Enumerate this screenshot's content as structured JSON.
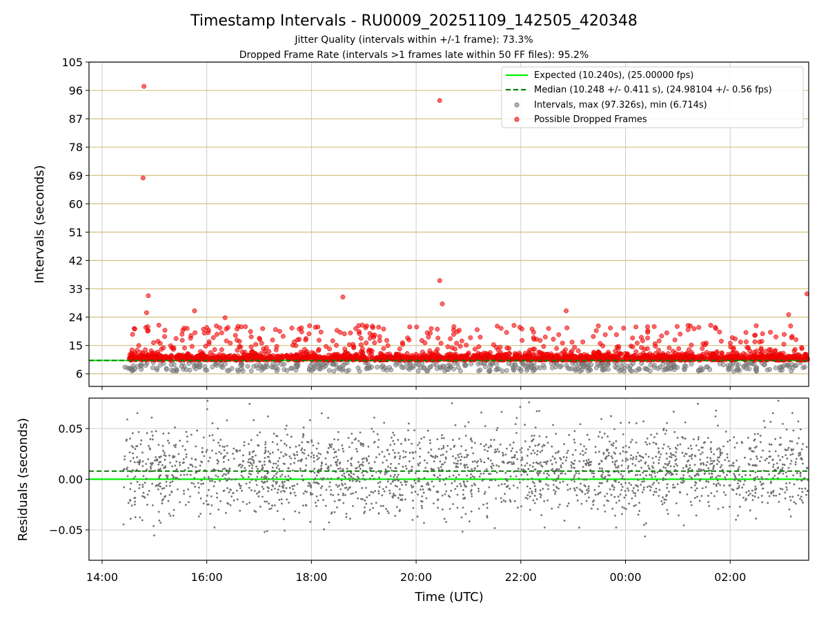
{
  "figure": {
    "title": "Timestamp Intervals - RU0009_20251109_142505_420348",
    "subtitle1": "Jitter Quality (intervals within +/-1 frame): 73.3%",
    "subtitle2": "Dropped Frame Rate (intervals >1 frames late within 50 FF files): 95.2%"
  },
  "chart_data": [
    {
      "type": "scatter",
      "title": "Timestamp Intervals - RU0009_20251109_142505_420348",
      "xlabel": "",
      "ylabel": "Intervals (seconds)",
      "x_range": [
        "2025-11-09T13:45",
        "2025-11-10T03:30"
      ],
      "ylim": [
        2,
        105
      ],
      "y_ticks": [
        6,
        15,
        24,
        33,
        42,
        51,
        60,
        69,
        78,
        87,
        96,
        105
      ],
      "x_ticks": [
        "14:00",
        "16:00",
        "18:00",
        "20:00",
        "22:00",
        "00:00",
        "02:00"
      ],
      "grid": true,
      "legend_position": "top-right",
      "expected_interval": 10.24,
      "median_interval": 10.248,
      "series": [
        {
          "name": "Expected (10.240s), (25.00000 fps)",
          "type": "line",
          "color": "#00ee00"
        },
        {
          "name": "Median (10.248 +/- 0.411 s), (24.98104 +/- 0.56 fps)",
          "type": "line",
          "color": "#008000"
        },
        {
          "name": "Intervals, max (97.326s), min (6.714s)",
          "type": "scatter",
          "color": "#808080"
        },
        {
          "name": "Possible Dropped Frames",
          "type": "scatter",
          "color": "#ff0000",
          "notable_points": [
            {
              "x": "2025-11-09T14:48",
              "y": 97.3
            },
            {
              "x": "2025-11-09T14:47",
              "y": 68.2
            },
            {
              "x": "2025-11-09T20:27",
              "y": 92.8
            },
            {
              "x": "2025-11-09T20:27",
              "y": 35.6
            },
            {
              "x": "2025-11-09T20:30",
              "y": 28.2
            },
            {
              "x": "2025-11-09T14:53",
              "y": 30.8
            },
            {
              "x": "2025-11-09T14:51",
              "y": 25.4
            },
            {
              "x": "2025-11-09T18:36",
              "y": 30.4
            },
            {
              "x": "2025-11-09T22:52",
              "y": 26.0
            },
            {
              "x": "2025-11-09T15:46",
              "y": 26.0
            },
            {
              "x": "2025-11-09T16:21",
              "y": 23.8
            },
            {
              "x": "2025-11-10T03:28",
              "y": 31.4
            },
            {
              "x": "2025-11-10T03:07",
              "y": 24.8
            }
          ]
        }
      ]
    },
    {
      "type": "scatter",
      "xlabel": "Time (UTC)",
      "ylabel": "Residuals (seconds)",
      "x_range": [
        "2025-11-09T13:45",
        "2025-11-10T03:30"
      ],
      "ylim": [
        -0.08,
        0.08
      ],
      "y_ticks": [
        -0.05,
        0.0,
        0.05
      ],
      "y_tick_labels": [
        "−0.05",
        "0.00",
        "0.05"
      ],
      "x_ticks": [
        "14:00",
        "16:00",
        "18:00",
        "20:00",
        "22:00",
        "00:00",
        "02:00"
      ],
      "grid": true,
      "expected_residual": 0.0,
      "median_residual": 0.008,
      "series": [
        {
          "name": "Expected",
          "type": "line",
          "color": "#00ee00"
        },
        {
          "name": "Median",
          "type": "line",
          "color": "#008000"
        },
        {
          "name": "Residuals",
          "type": "scatter",
          "color": "#707070"
        }
      ]
    }
  ]
}
